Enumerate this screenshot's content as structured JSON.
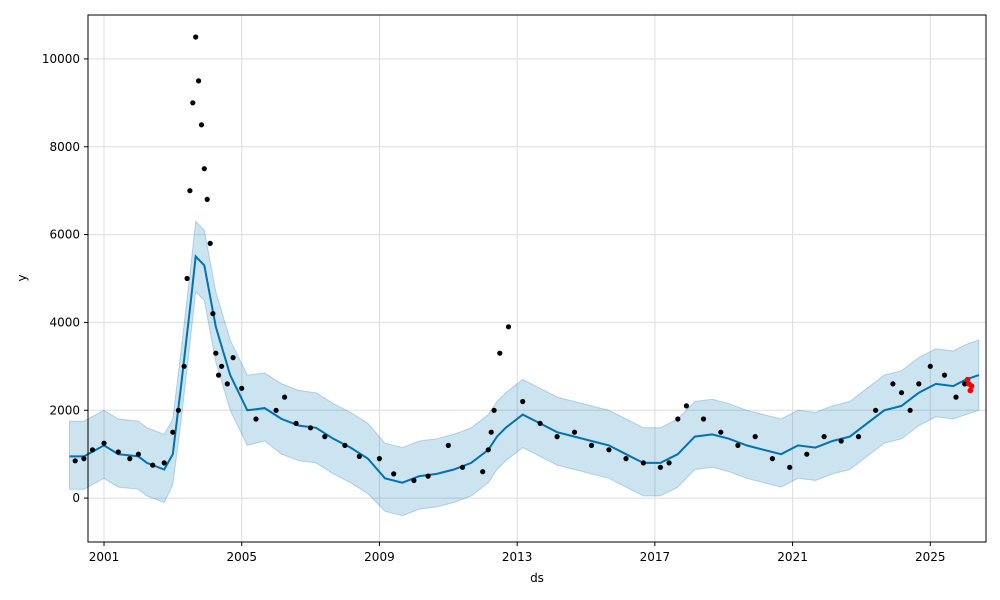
{
  "chart_data": {
    "type": "scatter",
    "title": "",
    "xlabel": "ds",
    "ylabel": "y",
    "grid": true,
    "xlim": [
      "2000-07-15",
      "2026-08-15"
    ],
    "ylim": [
      -1000,
      11000
    ],
    "x_ticks": [
      "2001",
      "2005",
      "2009",
      "2013",
      "2017",
      "2021",
      "2025"
    ],
    "y_ticks": [
      "0",
      "2000",
      "4000",
      "6000",
      "8000",
      "10000"
    ],
    "colors": {
      "observed": "#000000",
      "recent": "#ff0000",
      "forecast": "#0072b2",
      "band": "#0072b2",
      "grid": "#dddddd"
    },
    "forecast": {
      "x": [
        "2000-01-01",
        "2000-06-01",
        "2001-01-01",
        "2001-06-01",
        "2002-01-01",
        "2002-04-01",
        "2002-10-01",
        "2003-01-01",
        "2003-04-01",
        "2003-07-01",
        "2003-09-01",
        "2003-12-01",
        "2004-04-01",
        "2004-09-01",
        "2005-03-01",
        "2005-09-01",
        "2006-03-01",
        "2006-09-01",
        "2007-03-01",
        "2007-09-01",
        "2008-03-01",
        "2008-09-01",
        "2009-03-01",
        "2009-09-01",
        "2010-03-01",
        "2010-09-01",
        "2011-03-01",
        "2011-09-01",
        "2012-03-01",
        "2012-06-01",
        "2012-09-01",
        "2013-03-01",
        "2013-09-01",
        "2014-03-01",
        "2014-09-01",
        "2015-03-01",
        "2015-09-01",
        "2016-03-01",
        "2016-09-01",
        "2017-03-01",
        "2017-09-01",
        "2018-03-01",
        "2018-09-01",
        "2019-03-01",
        "2019-09-01",
        "2020-03-01",
        "2020-09-01",
        "2021-03-01",
        "2021-09-01",
        "2022-03-01",
        "2022-09-01",
        "2023-03-01",
        "2023-09-01",
        "2024-03-01",
        "2024-09-01",
        "2025-03-01",
        "2025-09-01",
        "2026-01-15",
        "2026-06-01"
      ],
      "yhat": [
        950,
        950,
        1200,
        1000,
        950,
        800,
        650,
        1000,
        2600,
        4300,
        5500,
        5300,
        3900,
        2800,
        2000,
        2050,
        1800,
        1650,
        1600,
        1350,
        1150,
        900,
        450,
        350,
        500,
        550,
        650,
        800,
        1100,
        1400,
        1600,
        1900,
        1700,
        1500,
        1400,
        1300,
        1200,
        1000,
        800,
        800,
        1000,
        1400,
        1450,
        1350,
        1200,
        1100,
        1000,
        1200,
        1150,
        1300,
        1400,
        1700,
        2000,
        2100,
        2400,
        2600,
        2550,
        2700,
        2800
      ],
      "lower": [
        200,
        200,
        450,
        250,
        200,
        50,
        -100,
        300,
        1800,
        3500,
        4700,
        4500,
        3100,
        2000,
        1200,
        1300,
        1000,
        850,
        800,
        550,
        350,
        100,
        -300,
        -400,
        -250,
        -200,
        -100,
        50,
        350,
        650,
        850,
        1150,
        950,
        750,
        650,
        550,
        450,
        250,
        50,
        50,
        250,
        650,
        700,
        600,
        450,
        350,
        250,
        450,
        400,
        550,
        650,
        950,
        1250,
        1350,
        1650,
        1850,
        1800,
        1900,
        2000
      ],
      "upper": [
        1750,
        1750,
        2000,
        1800,
        1750,
        1600,
        1450,
        1800,
        3400,
        5100,
        6300,
        6100,
        4700,
        3600,
        2800,
        2850,
        2600,
        2450,
        2400,
        2150,
        1950,
        1700,
        1250,
        1150,
        1300,
        1350,
        1450,
        1600,
        1900,
        2200,
        2400,
        2700,
        2500,
        2300,
        2200,
        2100,
        2000,
        1800,
        1600,
        1600,
        1800,
        2200,
        2250,
        2150,
        2000,
        1900,
        1800,
        2000,
        1950,
        2100,
        2200,
        2500,
        2800,
        2900,
        3200,
        3400,
        3350,
        3500,
        3600
      ]
    },
    "observed": {
      "x": [
        "2000-03-01",
        "2000-06-01",
        "2000-09-01",
        "2001-01-01",
        "2001-06-01",
        "2001-10-01",
        "2002-01-01",
        "2002-06-01",
        "2002-10-01",
        "2003-01-01",
        "2003-03-01",
        "2003-05-01",
        "2003-06-01",
        "2003-07-01",
        "2003-08-01",
        "2003-09-01",
        "2003-10-01",
        "2003-11-01",
        "2003-12-01",
        "2004-01-01",
        "2004-02-01",
        "2004-03-01",
        "2004-04-01",
        "2004-05-01",
        "2004-06-01",
        "2004-08-01",
        "2004-10-01",
        "2005-01-01",
        "2005-06-01",
        "2006-01-01",
        "2006-04-01",
        "2006-08-01",
        "2007-01-01",
        "2007-06-01",
        "2008-01-01",
        "2008-06-01",
        "2009-01-01",
        "2009-06-01",
        "2010-01-01",
        "2010-06-01",
        "2011-01-01",
        "2011-06-01",
        "2012-01-01",
        "2012-03-01",
        "2012-04-01",
        "2012-05-01",
        "2012-07-01",
        "2012-10-01",
        "2013-03-01",
        "2013-09-01",
        "2014-03-01",
        "2014-09-01",
        "2015-03-01",
        "2015-09-01",
        "2016-03-01",
        "2016-09-01",
        "2017-03-01",
        "2017-06-01",
        "2017-09-01",
        "2017-12-01",
        "2018-06-01",
        "2018-12-01",
        "2019-06-01",
        "2019-12-01",
        "2020-06-01",
        "2020-12-01",
        "2021-06-01",
        "2021-12-01",
        "2022-06-01",
        "2022-12-01",
        "2023-06-01",
        "2023-12-01",
        "2024-03-01",
        "2024-06-01",
        "2024-09-01",
        "2025-01-01",
        "2025-06-01",
        "2025-10-01",
        "2026-01-01"
      ],
      "y": [
        850,
        900,
        1100,
        1250,
        1050,
        900,
        1000,
        750,
        800,
        1500,
        2000,
        3000,
        5000,
        7000,
        9000,
        10500,
        9500,
        8500,
        7500,
        6800,
        5800,
        4200,
        3300,
        2800,
        3000,
        2600,
        3200,
        2500,
        1800,
        2000,
        2300,
        1700,
        1600,
        1400,
        1200,
        950,
        900,
        550,
        400,
        500,
        1200,
        700,
        600,
        1100,
        1500,
        2000,
        3300,
        3900,
        2200,
        1700,
        1400,
        1500,
        1200,
        1100,
        900,
        800,
        700,
        800,
        1800,
        2100,
        1800,
        1500,
        1200,
        1400,
        900,
        700,
        1000,
        1400,
        1300,
        1400,
        2000,
        2600,
        2400,
        2000,
        2600,
        3000,
        2800,
        2300,
        2600
      ]
    },
    "recent": {
      "x": [
        "2026-02-01",
        "2026-02-15",
        "2026-03-01",
        "2026-03-15"
      ],
      "y": [
        2700,
        2600,
        2450,
        2550
      ]
    }
  }
}
